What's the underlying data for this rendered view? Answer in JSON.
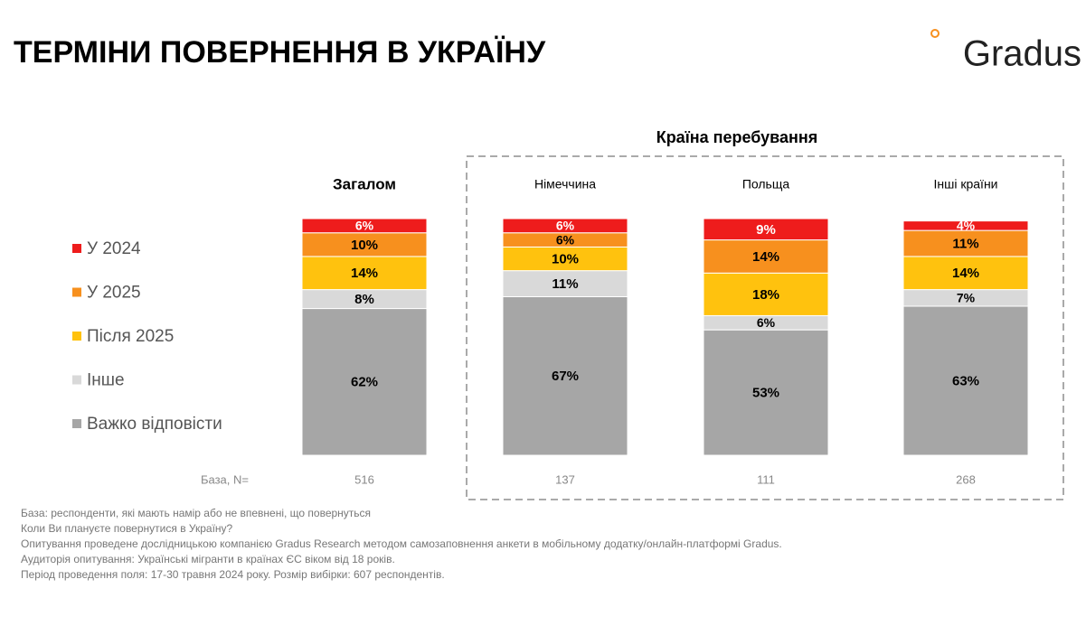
{
  "header": {
    "title": "ТЕРМІНИ ПОВЕРНЕННЯ В УКРАЇНУ",
    "logo": "Gradus"
  },
  "chart_data": {
    "type": "stacked-bar",
    "group_label": "Країна перебування",
    "categories": [
      "Загалом",
      "Німеччина",
      "Польща",
      "Інші країни"
    ],
    "series": [
      {
        "name": "У 2024",
        "color": "#ee1c1c",
        "values": [
          6,
          6,
          9,
          4
        ],
        "value_labels": [
          "6%",
          "6%",
          "9%",
          "4%"
        ]
      },
      {
        "name": "У 2025",
        "color": "#f7901e",
        "values": [
          10,
          6,
          14,
          11
        ],
        "value_labels": [
          "10%",
          "6%",
          "14%",
          "11%"
        ]
      },
      {
        "name": "Після 2025",
        "color": "#ffc20e",
        "values": [
          14,
          10,
          18,
          14
        ],
        "value_labels": [
          "14%",
          "10%",
          "18%",
          "14%"
        ]
      },
      {
        "name": "Інше",
        "color": "#d9d9d9",
        "values": [
          8,
          11,
          6,
          7
        ],
        "value_labels": [
          "8%",
          "11%",
          "6%",
          "7%"
        ]
      },
      {
        "name": "Важко відповісти",
        "color": "#a6a6a6",
        "values": [
          62,
          67,
          53,
          63
        ],
        "value_labels": [
          "62%",
          "67%",
          "53%",
          "63%"
        ]
      }
    ],
    "base_label": "База, N=",
    "base_n": [
      516,
      137,
      111,
      268
    ]
  },
  "footnotes": [
    "База: респонденти, які мають намір або не впевнені, що повернуться",
    "Коли Ви плануєте повернутися в Україну?",
    "Опитування проведене дослідницькою компанією Gradus Research методом самозаповнення анкети в мобільному додатку/онлайн-платформі Gradus.",
    "Аудиторія опитування: Українські мігранти в країнах ЄС віком від 18 років.",
    "Період проведення поля: 17-30 травня 2024 року. Розмір вибірки: 607 респондентів."
  ]
}
